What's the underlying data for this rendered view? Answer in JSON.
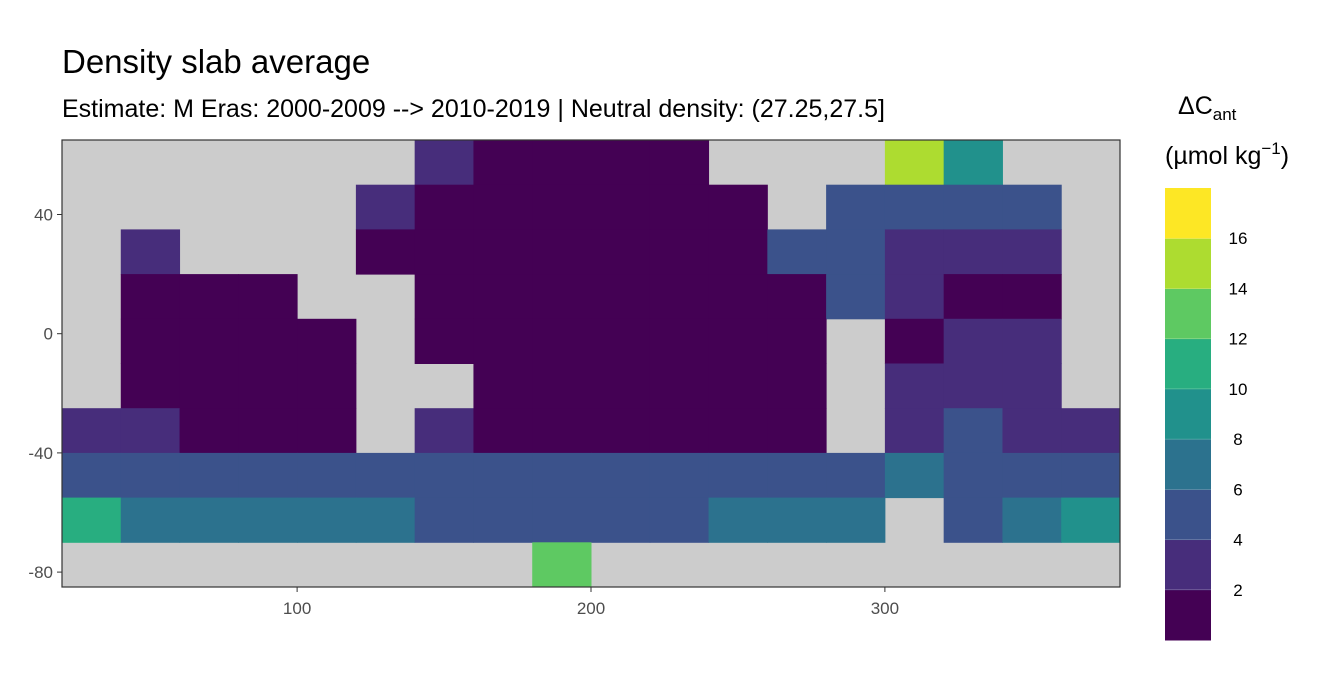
{
  "chart_data": {
    "type": "heatmap",
    "title": "Density slab average",
    "subtitle": "Estimate: M Eras: 2000-2009 --> 2010-2019 | Neutral density: (27.25,27.5]",
    "x": [
      30,
      50,
      70,
      90,
      110,
      130,
      150,
      170,
      190,
      210,
      230,
      250,
      270,
      290,
      310,
      330,
      350,
      370
    ],
    "y": [
      57.5,
      42.5,
      27.5,
      12.5,
      -2.5,
      -17.5,
      -32.5,
      -47.5,
      -62.5,
      -77.5
    ],
    "z": [
      [
        null,
        null,
        null,
        null,
        null,
        null,
        3,
        1,
        1,
        1,
        1,
        null,
        null,
        null,
        15,
        9,
        null,
        null
      ],
      [
        null,
        null,
        null,
        null,
        null,
        3,
        1,
        1,
        1,
        1,
        1,
        1,
        null,
        5,
        5,
        5,
        5,
        null
      ],
      [
        null,
        3,
        null,
        null,
        null,
        1,
        1,
        1,
        1,
        1,
        1,
        1,
        5,
        5,
        3,
        3,
        3,
        null
      ],
      [
        null,
        1,
        1,
        1,
        null,
        null,
        1,
        1,
        1,
        1,
        1,
        1,
        1,
        5,
        3,
        1,
        1,
        null
      ],
      [
        null,
        1,
        1,
        1,
        1,
        null,
        1,
        1,
        1,
        1,
        1,
        1,
        1,
        null,
        1,
        3,
        3,
        null
      ],
      [
        null,
        1,
        1,
        1,
        1,
        null,
        null,
        1,
        1,
        1,
        1,
        1,
        1,
        null,
        3,
        3,
        3,
        null
      ],
      [
        3,
        3,
        1,
        1,
        1,
        null,
        3,
        1,
        1,
        1,
        1,
        1,
        1,
        null,
        3,
        5,
        3,
        3
      ],
      [
        5,
        5,
        5,
        5,
        5,
        5,
        5,
        5,
        5,
        5,
        5,
        5,
        5,
        5,
        7,
        5,
        5,
        5
      ],
      [
        11,
        7,
        7,
        7,
        7,
        7,
        5,
        5,
        5,
        5,
        5,
        7,
        7,
        7,
        null,
        5,
        7,
        9
      ],
      [
        null,
        null,
        null,
        null,
        null,
        null,
        null,
        null,
        13,
        null,
        null,
        null,
        null,
        null,
        null,
        null,
        null,
        null
      ]
    ],
    "xlim": [
      20,
      380
    ],
    "ylim": [
      -85,
      65
    ],
    "xticks": [
      100,
      200,
      300
    ],
    "yticks": [
      40,
      0,
      -40,
      -80
    ],
    "legend_title": [
      "ΔC",
      "ant",
      "(µmol kg",
      "−1",
      ")"
    ],
    "legend_lim": [
      0,
      18
    ],
    "legend_ticks": [
      2,
      4,
      6,
      8,
      10,
      12,
      14,
      16
    ],
    "colors": [
      "#440154",
      "#472d7b",
      "#3b528b",
      "#2c728e",
      "#21918c",
      "#28ae80",
      "#5ec962",
      "#addc30",
      "#fde725"
    ],
    "background": "#cccccc"
  }
}
